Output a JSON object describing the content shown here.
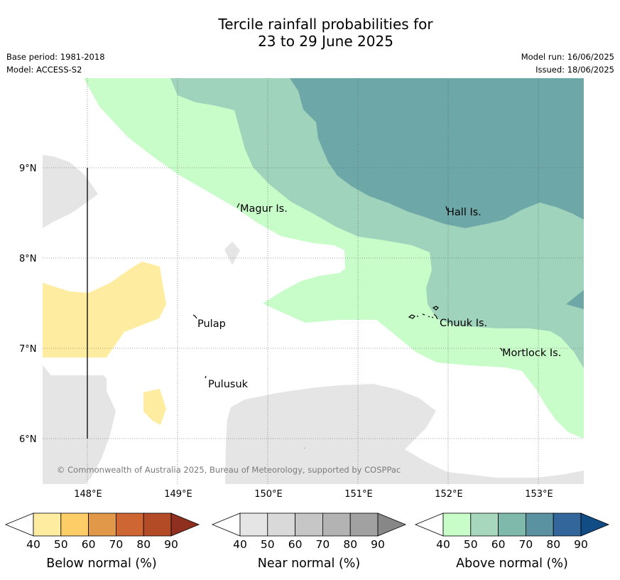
{
  "title": {
    "line1": "Tercile rainfall probabilities for",
    "line2": "23 to 29 June 2025"
  },
  "meta": {
    "base_period": "Base period: 1981-2018",
    "model": "Model: ACCESS-S2",
    "model_run": "Model run: 16/06/2025",
    "issued": "Issued: 18/06/2025"
  },
  "map": {
    "lat_labels": [
      "9°N",
      "8°N",
      "7°N",
      "6°N"
    ],
    "lon_labels": [
      "148°E",
      "149°E",
      "150°E",
      "151°E",
      "152°E",
      "153°E"
    ],
    "places": [
      "Magur Is.",
      "Hall Is.",
      "Pulap",
      "Chuuk Is.",
      "Mortlock Is.",
      "Pulusuk"
    ],
    "copyright": "© Commonwealth of Australia 2025, Bureau of Meteorology, supported by COSPPac"
  },
  "legends": [
    {
      "label": "Below normal (%)",
      "ticks": [
        "40",
        "50",
        "60",
        "70",
        "80",
        "90"
      ],
      "colors": [
        "#ffffff",
        "#feeda0",
        "#fdcd67",
        "#e29849",
        "#cd6633",
        "#b34b27",
        "#8e2f1f"
      ]
    },
    {
      "label": "Near normal (%)",
      "ticks": [
        "40",
        "50",
        "60",
        "70",
        "80",
        "90"
      ],
      "colors": [
        "#ffffff",
        "#e5e5e5",
        "#d9d9d9",
        "#c6c6c6",
        "#b3b3b3",
        "#a1a1a1",
        "#878787"
      ]
    },
    {
      "label": "Above normal (%)",
      "ticks": [
        "40",
        "50",
        "60",
        "70",
        "80",
        "90"
      ],
      "colors": [
        "#ffffff",
        "#c8fdca",
        "#a7d8bd",
        "#7fb9ac",
        "#5a92a2",
        "#33669a",
        "#124c85"
      ]
    }
  ]
}
